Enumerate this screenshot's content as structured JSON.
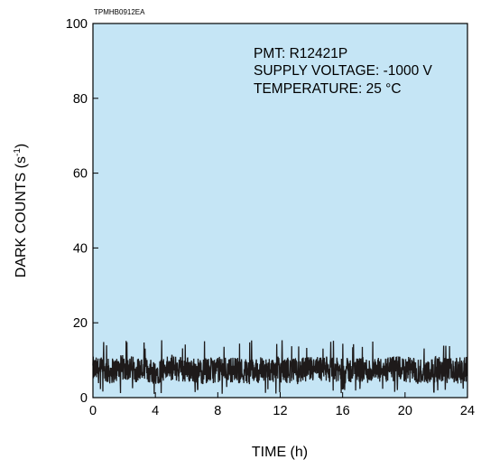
{
  "chart_data": {
    "type": "line",
    "figure_code": "TPMHB0912EA",
    "title": "",
    "xlabel": "TIME (h)",
    "ylabel": "DARK COUNTS (s",
    "ylabel_superscript": "-1",
    "ylabel_close": ")",
    "xlim": [
      0,
      24
    ],
    "ylim": [
      0,
      100
    ],
    "x_ticks": [
      "0",
      "4",
      "8",
      "12",
      "16",
      "20",
      "24"
    ],
    "y_ticks": [
      "0",
      "20",
      "40",
      "60",
      "80",
      "100"
    ],
    "grid": false,
    "plot_background": "#c5e5f5",
    "line_color": "#1e1a1a",
    "annotations": [
      "PMT: R12421P",
      "SUPPLY VOLTAGE: -1000 V",
      "TEMPERATURE: 25 °C"
    ],
    "series": [
      {
        "x": [
          0,
          1,
          2,
          3,
          4,
          5,
          6,
          7,
          8,
          9,
          10,
          11,
          12,
          13,
          14,
          15,
          16,
          17,
          18,
          19,
          20,
          21,
          22,
          23,
          24
        ],
        "y": [
          7.5,
          7,
          8,
          7.5,
          7,
          8,
          7.5,
          7,
          7.5,
          7.5,
          7,
          7.5,
          7.5,
          7,
          7.5,
          7.5,
          7,
          7.5,
          7,
          7.5,
          7.5,
          7,
          7.5,
          7,
          7.5
        ],
        "y_min": 1,
        "y_max": 15.5
      }
    ]
  }
}
